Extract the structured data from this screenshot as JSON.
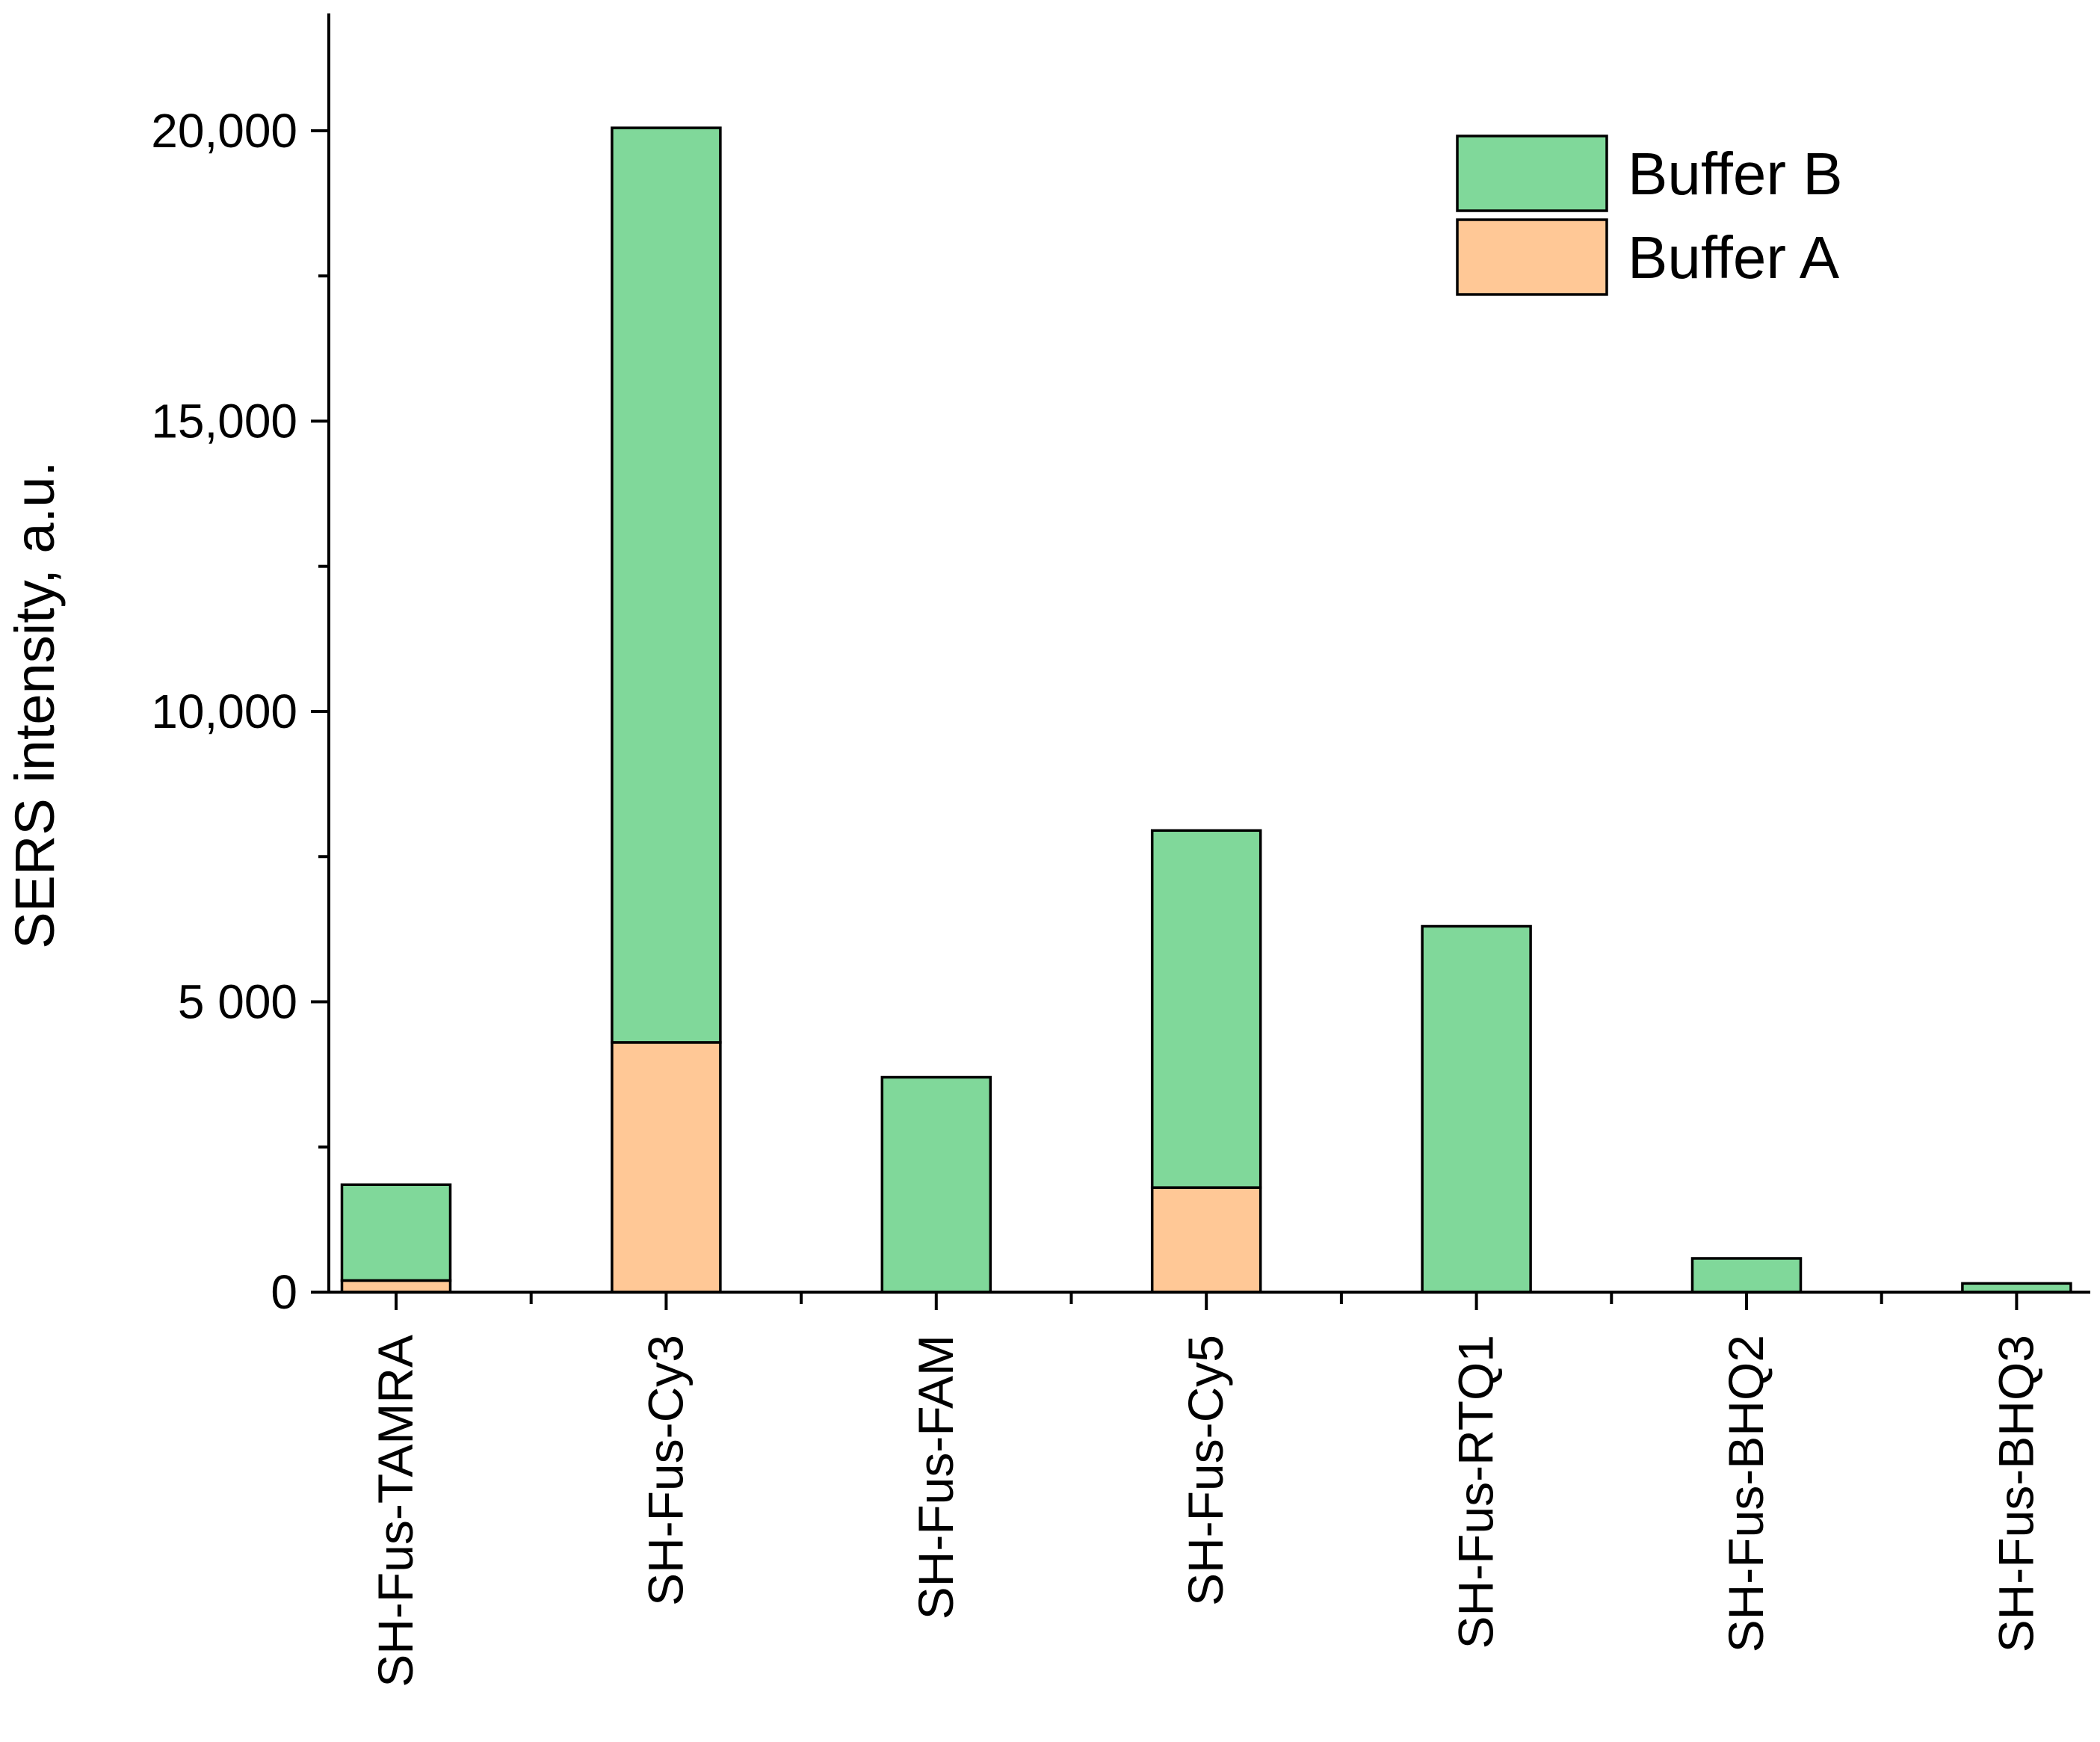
{
  "chart_data": {
    "type": "bar",
    "stacked": true,
    "title": "",
    "xlabel": "",
    "ylabel": "SERS intensity, a.u.",
    "ylim": [
      0,
      22000
    ],
    "yticks": [
      {
        "value": 0,
        "label": "0"
      },
      {
        "value": 5000,
        "label": "5 000"
      },
      {
        "value": 10000,
        "label": "10,000"
      },
      {
        "value": 15000,
        "label": "15,000"
      },
      {
        "value": 20000,
        "label": "20,000"
      }
    ],
    "minor_tick_step": 2500,
    "categories": [
      "SH-Fus-TAMRA",
      "SH-Fus-Cy3",
      "SH-Fus-FAM",
      "SH-Fus-Cy5",
      "SH-Fus-RTQ1",
      "SH-Fus-BHQ2",
      "SH-Fus-BHQ3"
    ],
    "series": [
      {
        "name": "Buffer A",
        "color": "#FFC896",
        "values": [
          200,
          4300,
          0,
          1800,
          0,
          0,
          0
        ]
      },
      {
        "name": "Buffer B",
        "color": "#80D89A",
        "values": [
          1650,
          15750,
          3700,
          6150,
          6300,
          580,
          150
        ]
      }
    ],
    "legend": {
      "position": "top-right",
      "entries": [
        {
          "label": "Buffer B",
          "color": "#80D89A"
        },
        {
          "label": "Buffer A",
          "color": "#FFC896"
        }
      ]
    },
    "grid": false
  }
}
